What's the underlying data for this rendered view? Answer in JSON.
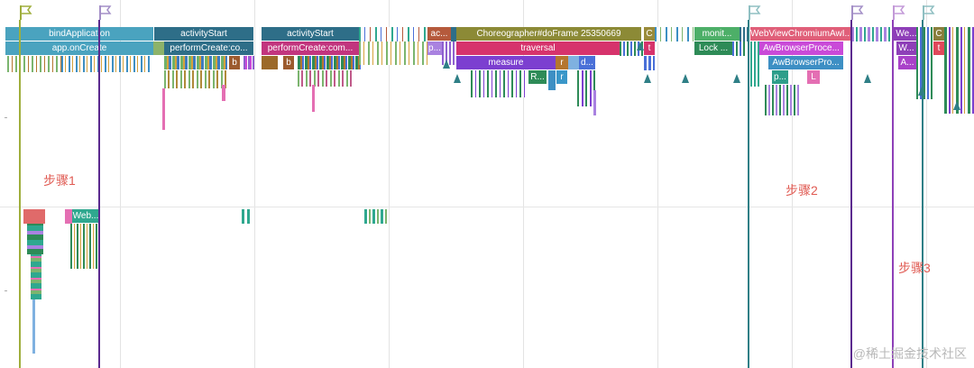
{
  "trace": {
    "top_row": [
      {
        "label": "bindApplication",
        "color": "#4aa3bf"
      },
      {
        "label": "activityStart",
        "color": "#2e6e88"
      },
      {
        "label": "activityStart",
        "color": "#2e6e88"
      },
      {
        "label": "ac...",
        "color": "#b55a3c"
      },
      {
        "label": "Choreographer#doFrame 25350669",
        "color": "#8c8a36"
      },
      {
        "label": "C",
        "color": "#9a8b3a"
      },
      {
        "label": "monit...",
        "color": "#4daf68"
      },
      {
        "label": "WebViewChromiumAwI...",
        "color": "#e05f79"
      },
      {
        "label": "We...",
        "color": "#8e3fb8"
      },
      {
        "label": "C",
        "color": "#8a7f3c"
      }
    ],
    "second_row": [
      {
        "label": "app.onCreate",
        "color": "#4aa3bf"
      },
      {
        "label": "performCreate:co...",
        "color": "#2e6e88"
      },
      {
        "label": "performCreate:com...",
        "color": "#c2357e"
      },
      {
        "label": "p...",
        "color": "#a982e0"
      },
      {
        "label": "traversal",
        "color": "#d6336c"
      },
      {
        "label": "t",
        "color": "#d6336c"
      },
      {
        "label": "Lock ...",
        "color": "#2e8b57"
      },
      {
        "label": "AwBrowserProce...",
        "color": "#c94ad8"
      },
      {
        "label": "W...",
        "color": "#8e3fb8"
      },
      {
        "label": "t",
        "color": "#e0485b"
      }
    ],
    "third_row": [
      {
        "label": "b",
        "color": "#9c5b2e"
      },
      {
        "label": "b",
        "color": "#9c5b2e"
      },
      {
        "label": "measure",
        "color": "#7c3fd0"
      },
      {
        "label": "r",
        "color": "#b5762f"
      },
      {
        "label": "d...",
        "color": "#4a70d8"
      },
      {
        "label": "AwBrowserPro...",
        "color": "#3d8fc4"
      },
      {
        "label": "A...",
        "color": "#a941c9"
      }
    ],
    "fourth_row": [
      {
        "label": "R...",
        "color": "#2e8b57"
      },
      {
        "label": "r",
        "color": "#3a97c9"
      },
      {
        "label": "p...",
        "color": "#2e9e8a"
      },
      {
        "label": "L",
        "color": "#e46fb3"
      }
    ],
    "lower_track": [
      {
        "label": "Web...",
        "color": "#2fa88f"
      }
    ],
    "annotations": {
      "step1": "步骤1",
      "step2": "步骤2",
      "step3": "步骤3"
    },
    "watermark": "@稀土掘金技术社区",
    "flag_icon": "flag-icon",
    "marker_colors": {
      "olive": "#9fae3c",
      "purple": "#5b2a8f",
      "teal": "#2f7f86",
      "violet": "#8e3fb8"
    }
  }
}
